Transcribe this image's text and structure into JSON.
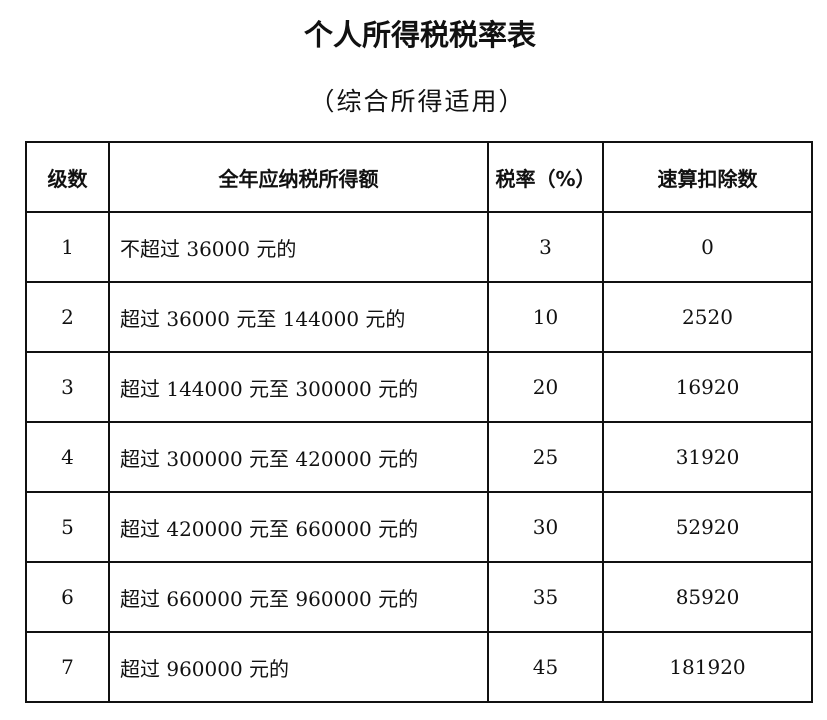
{
  "title": "个人所得税税率表",
  "subtitle": "（综合所得适用）",
  "table": {
    "headers": [
      "级数",
      "全年应纳税所得额",
      "税率（%）",
      "速算扣除数"
    ],
    "rows": [
      {
        "level": "1",
        "range": "不超过 36000 元的",
        "rate": "3",
        "deduction": "0"
      },
      {
        "level": "2",
        "range": "超过 36000 元至 144000 元的",
        "rate": "10",
        "deduction": "2520"
      },
      {
        "level": "3",
        "range": "超过 144000 元至 300000 元的",
        "rate": "20",
        "deduction": "16920"
      },
      {
        "level": "4",
        "range": "超过 300000 元至 420000 元的",
        "rate": "25",
        "deduction": "31920"
      },
      {
        "level": "5",
        "range": "超过 420000 元至 660000 元的",
        "rate": "30",
        "deduction": "52920"
      },
      {
        "level": "6",
        "range": "超过 660000 元至 960000 元的",
        "rate": "35",
        "deduction": "85920"
      },
      {
        "level": "7",
        "range": "超过 960000 元的",
        "rate": "45",
        "deduction": "181920"
      }
    ]
  }
}
